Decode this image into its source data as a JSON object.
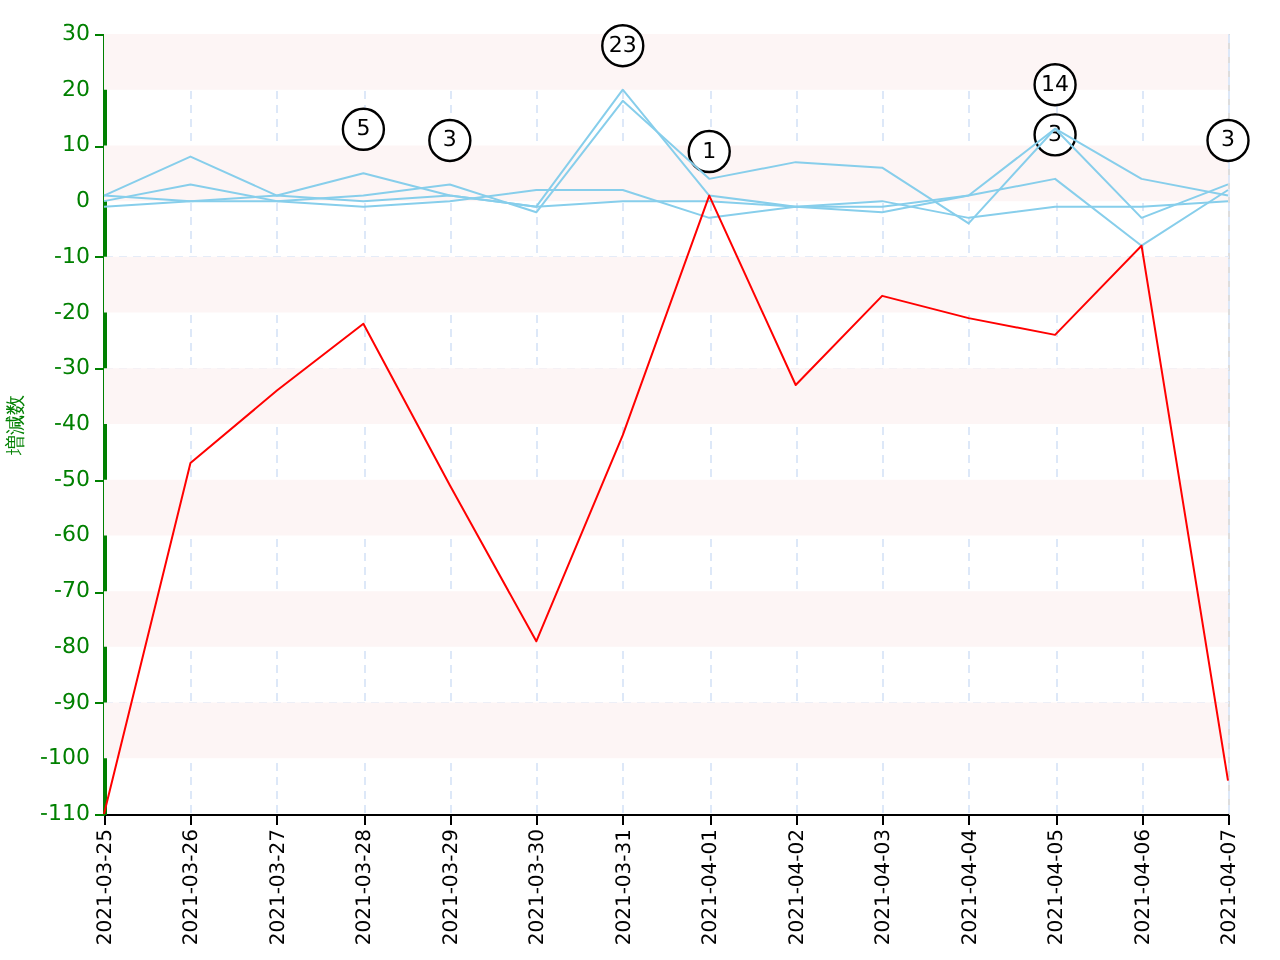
{
  "chart_data": {
    "type": "line",
    "ylabel": "増減数",
    "categories": [
      "2021-03-25",
      "2021-03-26",
      "2021-03-27",
      "2021-03-28",
      "2021-03-29",
      "2021-03-30",
      "2021-03-31",
      "2021-04-01",
      "2021-04-02",
      "2021-04-03",
      "2021-04-04",
      "2021-04-05",
      "2021-04-06",
      "2021-04-07"
    ],
    "series": [
      {
        "color": "#87ceeb",
        "values": [
          1,
          8,
          1,
          5,
          1,
          -1,
          20,
          1,
          -1,
          -1,
          1,
          13,
          4,
          1
        ]
      },
      {
        "color": "#87ceeb",
        "values": [
          0,
          3,
          0,
          1,
          3,
          -2,
          18,
          4,
          7,
          6,
          -4,
          13,
          -3,
          3
        ]
      },
      {
        "color": "#87ceeb",
        "values": [
          -1,
          0,
          0,
          -1,
          0,
          2,
          2,
          -3,
          -1,
          -2,
          1,
          4,
          -8,
          2
        ]
      },
      {
        "color": "#87ceeb",
        "values": [
          1,
          0,
          1,
          0,
          1,
          -1,
          0,
          0,
          -1,
          0,
          -3,
          -1,
          -1,
          0
        ]
      },
      {
        "color": "#ff0000",
        "values": [
          -110,
          -47,
          -34,
          -22,
          -51,
          -79,
          -42,
          1,
          -33,
          -17,
          -21,
          -24,
          -8,
          -104
        ]
      }
    ],
    "annotations": [
      {
        "text": "5",
        "x": "2021-03-28",
        "y": 5
      },
      {
        "text": "3",
        "x": "2021-03-29",
        "y": 3
      },
      {
        "text": "23",
        "x": "2021-03-31",
        "y": 20
      },
      {
        "text": "1",
        "x": "2021-04-01",
        "y": 1
      },
      {
        "text": "14",
        "x": "2021-04-05",
        "y": 13
      },
      {
        "text": "3",
        "x": "2021-04-05",
        "y": 4
      },
      {
        "text": "3",
        "x": "2021-04-07",
        "y": 3
      }
    ],
    "bands": [
      {
        "axis": "y",
        "from": 20,
        "to": 30,
        "color": "#fdf5f5"
      },
      {
        "axis": "y",
        "from": 0,
        "to": 10,
        "color": "#fdf5f5"
      },
      {
        "axis": "y",
        "from": -20,
        "to": -10,
        "color": "#fdf5f5"
      },
      {
        "axis": "y",
        "from": -40,
        "to": -30,
        "color": "#fdf5f5"
      },
      {
        "axis": "y",
        "from": -60,
        "to": -50,
        "color": "#fdf5f5"
      },
      {
        "axis": "y",
        "from": -80,
        "to": -70,
        "color": "#fdf5f5"
      },
      {
        "axis": "y",
        "from": -100,
        "to": -90,
        "color": "#fdf5f5"
      }
    ],
    "ylim": [
      -110,
      30
    ],
    "yticks": [
      -110,
      -100,
      -90,
      -80,
      -70,
      -60,
      -50,
      -40,
      -30,
      -20,
      -10,
      0,
      10,
      20,
      30
    ],
    "grid": true,
    "marker": "none",
    "line_style": "solid"
  }
}
